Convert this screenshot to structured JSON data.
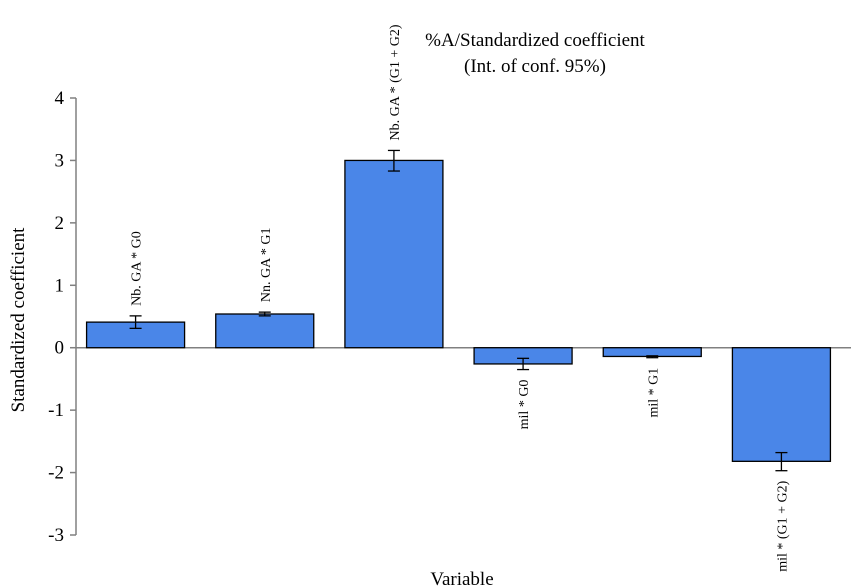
{
  "chart_data": {
    "type": "bar",
    "title": "%A/Standardized coefficient",
    "subtitle": "(Int. of conf. 95%)",
    "xlabel": "Variable",
    "ylabel": "Standardized coefficient",
    "ylim": [
      -3,
      4
    ],
    "yticks": [
      "4",
      "3",
      "2",
      "1",
      "0",
      "-1",
      "-2",
      "-3"
    ],
    "categories": [
      "Nb. GA * G0",
      "Nn. GA * G1",
      "Nb. GA * (G1 + G2)",
      "mil * G0",
      "mil * G1",
      "mil * (G1 + G2)"
    ],
    "values": [
      0.41,
      0.54,
      3.0,
      -0.26,
      -0.14,
      -1.82
    ],
    "error_low": [
      0.31,
      0.51,
      2.83,
      -0.35,
      -0.16,
      -1.97
    ],
    "error_high": [
      0.51,
      0.57,
      3.16,
      -0.17,
      -0.13,
      -1.68
    ],
    "grid": false,
    "legend": "none",
    "colors": {
      "bar": "#4a86e8",
      "bar_edge": "#000000",
      "axis": "#808080"
    }
  }
}
